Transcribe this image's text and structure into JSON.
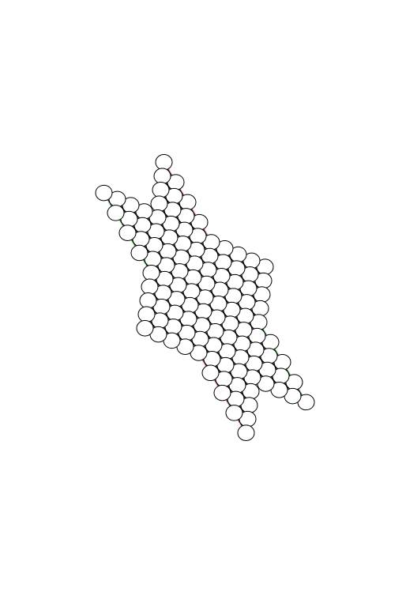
{
  "game": "chinese-checkers",
  "board": {
    "shape": "six-pointed-star",
    "rows_per_point": 4,
    "hexagon_side": 5,
    "hole_color": "#ffffff",
    "outline_color": "#000000"
  },
  "home_zones": [
    {
      "position": "top",
      "color": "#f7a8a8"
    },
    {
      "position": "bottom",
      "color": "#f7a8a8"
    },
    {
      "position": "upper-left",
      "color": "#a8f0a8"
    },
    {
      "position": "lower-right",
      "color": "#a8f0a8"
    },
    {
      "position": "upper-right",
      "color": "#faf7b4"
    },
    {
      "position": "lower-left",
      "color": "#faf7b4"
    }
  ]
}
